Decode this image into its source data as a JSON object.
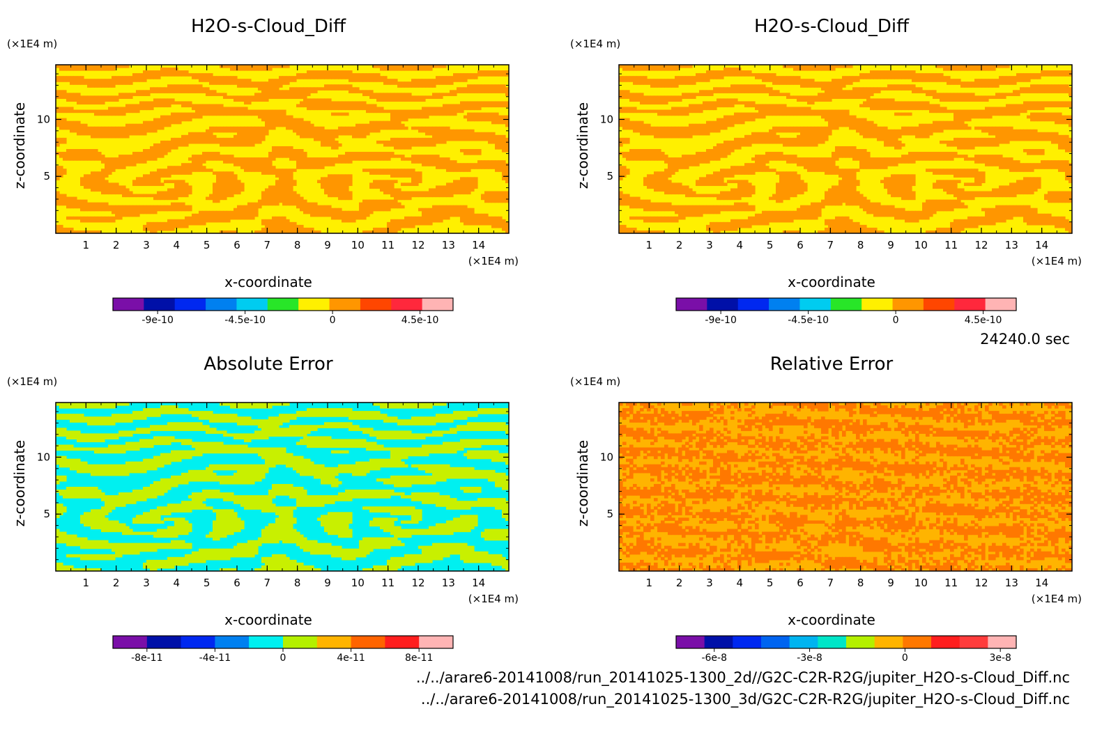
{
  "chart_data": [
    {
      "type": "heatmap",
      "title": "H2O-s-Cloud_Diff",
      "xlabel": "x-coordinate",
      "ylabel": "z-coordinate",
      "x_unit": "(×1E4 m)",
      "y_unit": "(×1E4 m)",
      "x_ticks": [
        "1",
        "2",
        "3",
        "4",
        "5",
        "6",
        "7",
        "8",
        "9",
        "10",
        "11",
        "12",
        "13",
        "14"
      ],
      "y_ticks": [
        "5",
        "10"
      ],
      "xlim": [
        0,
        15
      ],
      "ylim": [
        0,
        14.8
      ],
      "colorbar": {
        "colors": [
          "#7a0fa8",
          "#0010a8",
          "#0028f0",
          "#0080f0",
          "#00ccf0",
          "#28e628",
          "#fff000",
          "#ff9600",
          "#ff4600",
          "#ff283c",
          "#ffb4b4"
        ],
        "tick_labels": [
          "-9e-10",
          "-4.5e-10",
          "0",
          "4.5e-10"
        ],
        "tick_values": [
          -9e-10,
          -4.5e-10,
          0,
          4.5e-10
        ],
        "range": [
          -1.13e-09,
          6.2e-10
        ]
      },
      "dominant_colors": [
        "#fff000",
        "#ff9600"
      ]
    },
    {
      "type": "heatmap",
      "title": "H2O-s-Cloud_Diff",
      "xlabel": "x-coordinate",
      "ylabel": "z-coordinate",
      "x_unit": "(×1E4 m)",
      "y_unit": "(×1E4 m)",
      "x_ticks": [
        "1",
        "2",
        "3",
        "4",
        "5",
        "6",
        "7",
        "8",
        "9",
        "10",
        "11",
        "12",
        "13",
        "14"
      ],
      "y_ticks": [
        "5",
        "10"
      ],
      "xlim": [
        0,
        15
      ],
      "ylim": [
        0,
        14.8
      ],
      "colorbar": {
        "colors": [
          "#7a0fa8",
          "#0010a8",
          "#0028f0",
          "#0080f0",
          "#00ccf0",
          "#28e628",
          "#fff000",
          "#ff9600",
          "#ff4600",
          "#ff283c",
          "#ffb4b4"
        ],
        "tick_labels": [
          "-9e-10",
          "-4.5e-10",
          "0",
          "4.5e-10"
        ],
        "tick_values": [
          -9e-10,
          -4.5e-10,
          0,
          4.5e-10
        ],
        "range": [
          -1.13e-09,
          6.2e-10
        ]
      },
      "dominant_colors": [
        "#fff000",
        "#ff9600"
      ]
    },
    {
      "type": "heatmap",
      "title": "Absolute Error",
      "xlabel": "x-coordinate",
      "ylabel": "z-coordinate",
      "x_unit": "(×1E4 m)",
      "y_unit": "(×1E4 m)",
      "x_ticks": [
        "1",
        "2",
        "3",
        "4",
        "5",
        "6",
        "7",
        "8",
        "9",
        "10",
        "11",
        "12",
        "13",
        "14"
      ],
      "y_ticks": [
        "5",
        "10"
      ],
      "xlim": [
        0,
        15
      ],
      "ylim": [
        0,
        14.8
      ],
      "colorbar": {
        "colors": [
          "#7a0fa8",
          "#0010a8",
          "#0028f0",
          "#0080f0",
          "#00f0f0",
          "#b4f000",
          "#ffb400",
          "#ff6400",
          "#ff1e1e",
          "#ffb4b4"
        ],
        "tick_labels": [
          "-8e-11",
          "-4e-11",
          "0",
          "4e-11",
          "8e-11"
        ],
        "tick_values": [
          -8e-11,
          -4e-11,
          0,
          4e-11,
          8e-11
        ],
        "range": [
          -1e-10,
          1e-10
        ]
      },
      "dominant_colors": [
        "#00f0f0",
        "#c8f000"
      ]
    },
    {
      "type": "heatmap",
      "title": "Relative Error",
      "xlabel": "x-coordinate",
      "ylabel": "z-coordinate",
      "x_unit": "(×1E4 m)",
      "y_unit": "(×1E4 m)",
      "x_ticks": [
        "1",
        "2",
        "3",
        "4",
        "5",
        "6",
        "7",
        "8",
        "9",
        "10",
        "11",
        "12",
        "13",
        "14"
      ],
      "y_ticks": [
        "5",
        "10"
      ],
      "xlim": [
        0,
        15
      ],
      "ylim": [
        0,
        14.8
      ],
      "colorbar": {
        "colors": [
          "#7a0fa8",
          "#0010a8",
          "#0028f0",
          "#0064f0",
          "#00b4f0",
          "#00e6c8",
          "#b4f000",
          "#ffb400",
          "#ff7800",
          "#ff1e1e",
          "#ff3c3c",
          "#ffb4b4"
        ],
        "tick_labels": [
          "-6e-8",
          "-3e-8",
          "0",
          "3e-8"
        ],
        "tick_values": [
          -6e-08,
          -3e-08,
          0,
          3e-08
        ],
        "range": [
          -7.2e-08,
          3.5e-08
        ]
      },
      "dominant_colors": [
        "#ffb400",
        "#ff7800"
      ]
    }
  ],
  "time_label": "24240.0 sec",
  "file_paths": [
    "../../arare6-20141008/run_20141025-1300_2d//G2C-C2R-R2G/jupiter_H2O-s-Cloud_Diff.nc",
    "../../arare6-20141008/run_20141025-1300_3d/G2C-C2R-R2G/jupiter_H2O-s-Cloud_Diff.nc"
  ]
}
